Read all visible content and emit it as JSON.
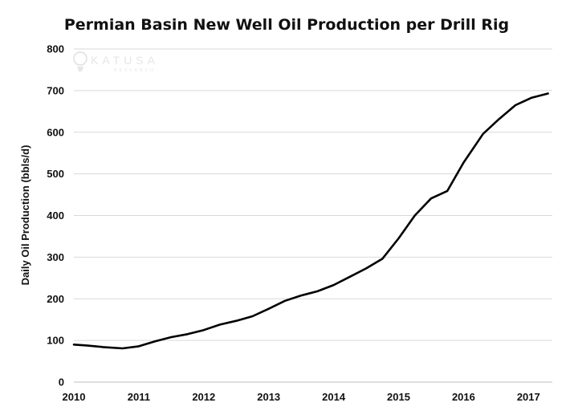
{
  "chart_data": {
    "type": "line",
    "title": "Permian Basin New Well Oil Production per Drill Rig",
    "ylabel": "Daily Oil Production (bbls/d)",
    "xlabel": "",
    "xlim": [
      2010,
      2017.4
    ],
    "ylim": [
      0,
      800
    ],
    "x_ticks": [
      2010,
      2011,
      2012,
      2013,
      2014,
      2015,
      2016,
      2017
    ],
    "y_ticks": [
      0,
      100,
      200,
      300,
      400,
      500,
      600,
      700,
      800
    ],
    "grid": true,
    "series": [
      {
        "color": "#000000",
        "x": [
          2010.0,
          2010.2,
          2010.45,
          2010.75,
          2011.0,
          2011.25,
          2011.5,
          2011.75,
          2012.0,
          2012.25,
          2012.5,
          2012.75,
          2013.0,
          2013.25,
          2013.5,
          2013.75,
          2014.0,
          2014.25,
          2014.5,
          2014.75,
          2015.0,
          2015.25,
          2015.5,
          2015.75,
          2016.0,
          2016.3,
          2016.55,
          2016.8,
          2017.05,
          2017.3
        ],
        "y": [
          90,
          88,
          84,
          81,
          86,
          98,
          108,
          115,
          125,
          138,
          147,
          158,
          176,
          195,
          208,
          218,
          233,
          253,
          273,
          296,
          345,
          400,
          441,
          459,
          527,
          596,
          632,
          665,
          683,
          693
        ]
      }
    ]
  },
  "watermark": {
    "brand": "KATUSA",
    "sub": "RESEARCH"
  }
}
